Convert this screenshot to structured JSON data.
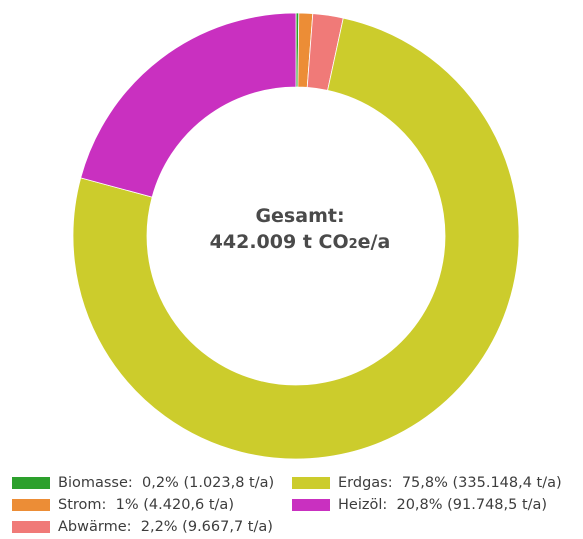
{
  "center": {
    "line1": "Gesamt:",
    "line2_prefix": "442.009 t CO",
    "line2_sub": "2",
    "line2_suffix": "e/a"
  },
  "chart_data": {
    "type": "pie",
    "donut": true,
    "title": "",
    "slices": [
      {
        "name": "Biomasse",
        "percent": 0.2,
        "value": 1023.8,
        "unit": "t/a",
        "color": "#2ca02c"
      },
      {
        "name": "Strom",
        "percent": 1.0,
        "value": 4420.6,
        "unit": "t/a",
        "color": "#ec8d36"
      },
      {
        "name": "Abwärme",
        "percent": 2.2,
        "value": 9667.7,
        "unit": "t/a",
        "color": "#f07a78"
      },
      {
        "name": "Erdgas",
        "percent": 75.8,
        "value": 335148.4,
        "unit": "t/a",
        "color": "#cccc2c"
      },
      {
        "name": "Heizöl",
        "percent": 20.8,
        "value": 91748.5,
        "unit": "t/a",
        "color": "#c930c0"
      }
    ],
    "start_angle_deg": 0,
    "direction": "clockwise",
    "legend_position": "bottom"
  },
  "legend": {
    "items": [
      {
        "key": "biomasse",
        "label": "Biomasse:",
        "value": "0,2% (1.023,8 t/a)",
        "color": "#2ca02c"
      },
      {
        "key": "strom",
        "label": "Strom:",
        "value": "1% (4.420,6 t/a)",
        "color": "#ec8d36"
      },
      {
        "key": "abwaerme",
        "label": "Abwärme:",
        "value": "2,2% (9.667,7 t/a)",
        "color": "#f07a78"
      },
      {
        "key": "erdgas",
        "label": "Erdgas:",
        "value": "75,8% (335.148,4 t/a)",
        "color": "#cccc2c"
      },
      {
        "key": "heizoel",
        "label": "Heizöl:",
        "value": "20,8% (91.748,5 t/a)",
        "color": "#c930c0"
      }
    ]
  }
}
